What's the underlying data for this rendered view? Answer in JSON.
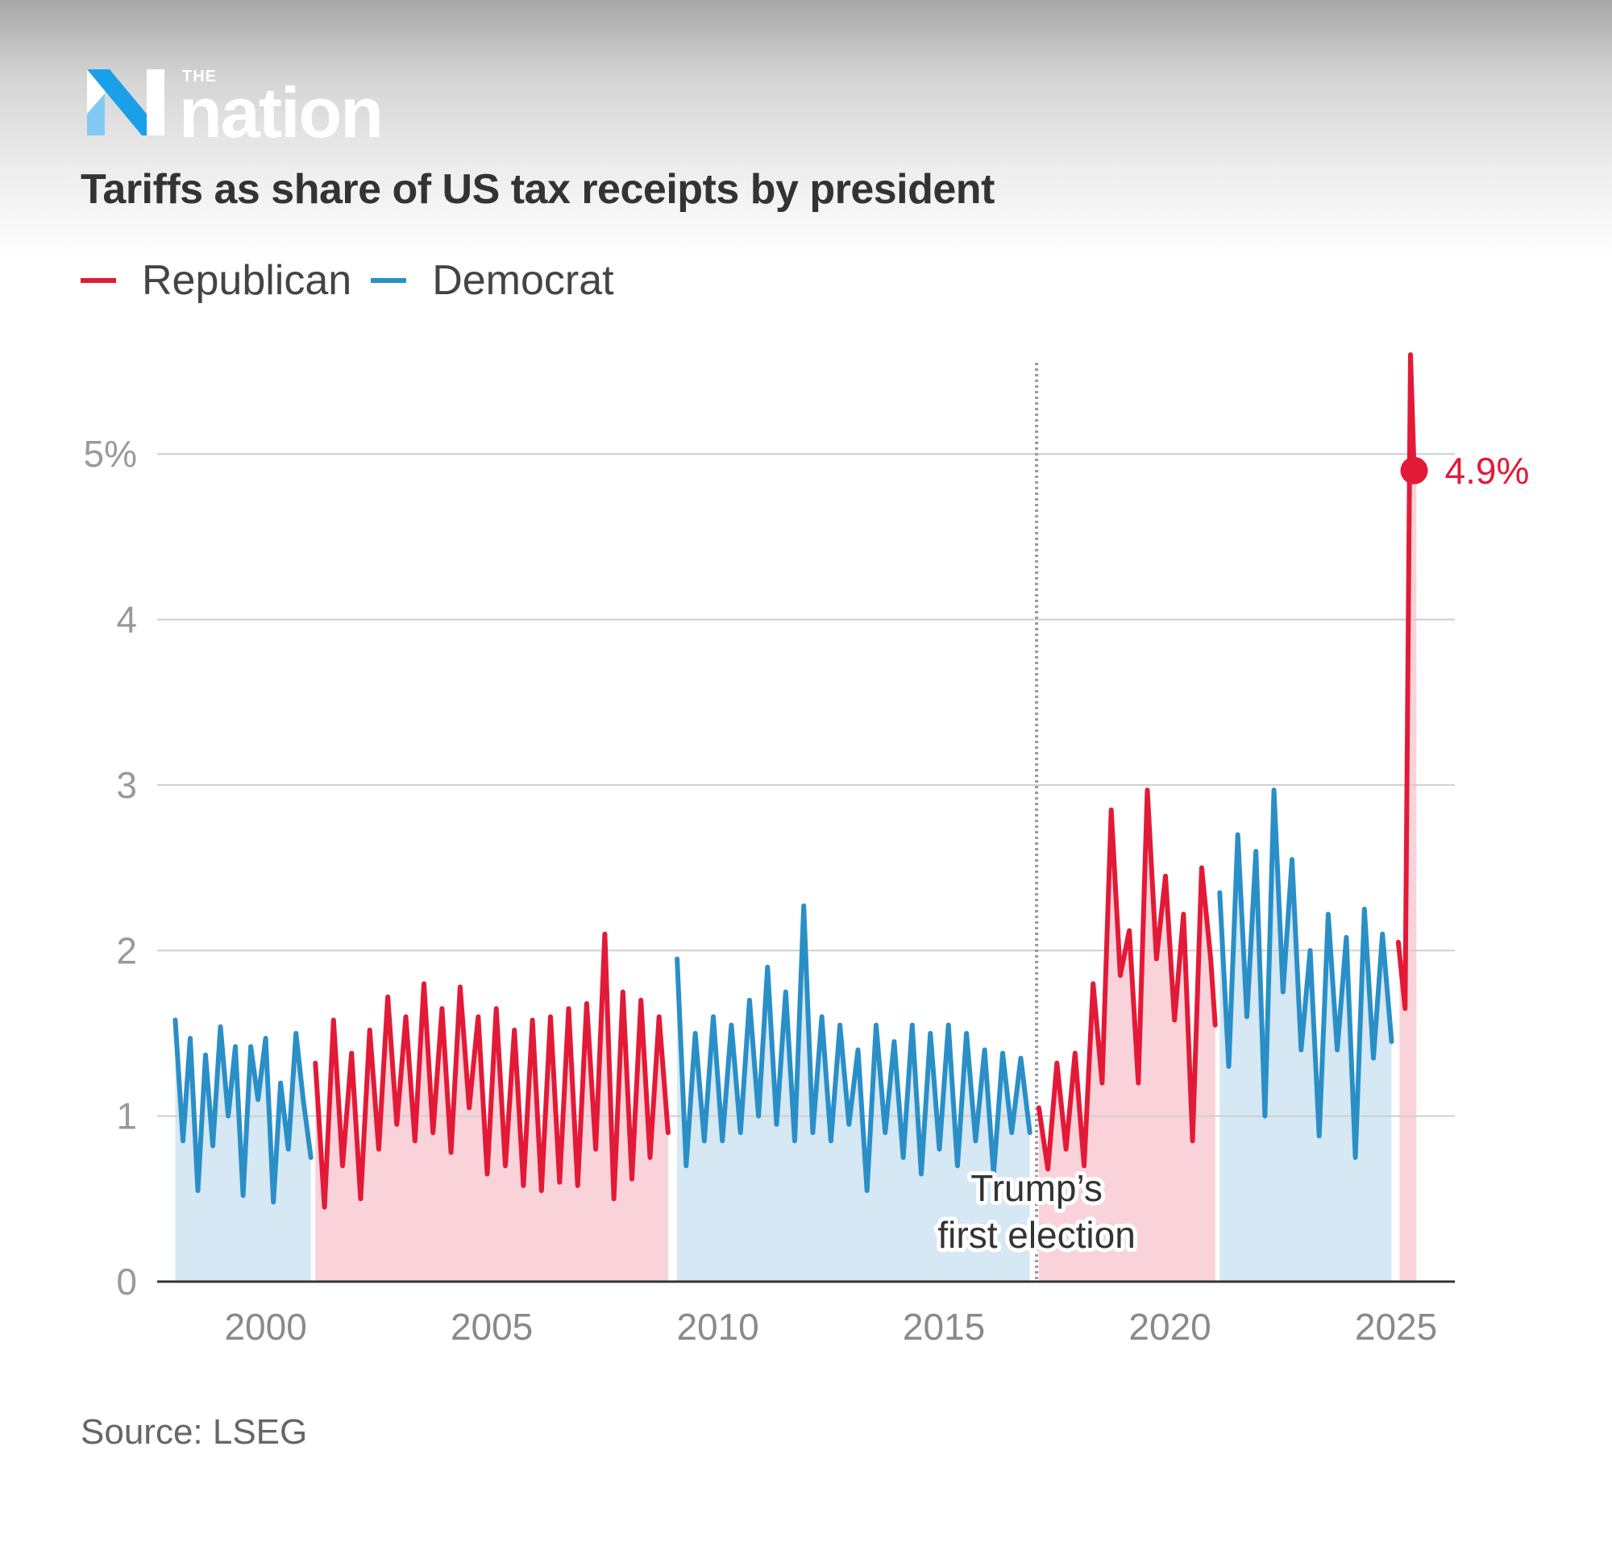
{
  "brand": {
    "the": "THE",
    "name": "nation"
  },
  "title": "Tariffs as share of US tax receipts by president",
  "legend": [
    {
      "label": "Republican",
      "color": "#e31a37"
    },
    {
      "label": "Democrat",
      "color": "#2a8fc7"
    }
  ],
  "source": "Source: LSEG",
  "chart_data": {
    "type": "line",
    "title": "Tariffs as share of US tax receipts by president",
    "xlabel": "",
    "ylabel": "",
    "xlim": [
      1997.6,
      2026.3
    ],
    "ylim": [
      0,
      5.6
    ],
    "x_ticks": [
      2000,
      2005,
      2010,
      2015,
      2020,
      2025
    ],
    "x_tick_labels": [
      "2000",
      "2005",
      "2010",
      "2015",
      "2020",
      "2025"
    ],
    "y_ticks": [
      0,
      1,
      2,
      3,
      4,
      5
    ],
    "y_tick_labels": [
      "0",
      "1",
      "2",
      "3",
      "4",
      "5%"
    ],
    "grid": true,
    "series": [
      {
        "name": "Democrat",
        "party": "Democrat",
        "color": "#2a8fc7",
        "fill": "#d5e8f4",
        "x": [
          1998.0,
          1998.17,
          1998.33,
          1998.5,
          1998.67,
          1998.83,
          1999.0,
          1999.17,
          1999.33,
          1999.5,
          1999.67,
          1999.83,
          2000.0,
          2000.17,
          2000.33,
          2000.5,
          2000.67,
          2000.83,
          2001.0
        ],
        "values": [
          1.58,
          0.85,
          1.47,
          0.55,
          1.37,
          0.82,
          1.54,
          1.0,
          1.42,
          0.52,
          1.42,
          1.1,
          1.47,
          0.48,
          1.2,
          0.8,
          1.5,
          1.1,
          0.75
        ]
      },
      {
        "name": "Republican",
        "party": "Republican",
        "color": "#e31a37",
        "fill": "#f9d3d9",
        "x": [
          2001.1,
          2001.3,
          2001.5,
          2001.7,
          2001.9,
          2002.1,
          2002.3,
          2002.5,
          2002.7,
          2002.9,
          2003.1,
          2003.3,
          2003.5,
          2003.7,
          2003.9,
          2004.1,
          2004.3,
          2004.5,
          2004.7,
          2004.9,
          2005.1,
          2005.3,
          2005.5,
          2005.7,
          2005.9,
          2006.1,
          2006.3,
          2006.5,
          2006.7,
          2006.9,
          2007.1,
          2007.3,
          2007.5,
          2007.7,
          2007.9,
          2008.1,
          2008.3,
          2008.5,
          2008.7,
          2008.9
        ],
        "values": [
          1.32,
          0.45,
          1.58,
          0.7,
          1.38,
          0.5,
          1.52,
          0.8,
          1.72,
          0.95,
          1.6,
          0.85,
          1.8,
          0.9,
          1.65,
          0.78,
          1.78,
          1.05,
          1.6,
          0.65,
          1.65,
          0.7,
          1.52,
          0.58,
          1.58,
          0.55,
          1.6,
          0.6,
          1.65,
          0.58,
          1.68,
          0.8,
          2.1,
          0.5,
          1.75,
          0.62,
          1.7,
          0.75,
          1.6,
          0.9
        ]
      },
      {
        "name": "Democrat",
        "party": "Democrat",
        "color": "#2a8fc7",
        "fill": "#d5e8f4",
        "x": [
          2009.1,
          2009.3,
          2009.5,
          2009.7,
          2009.9,
          2010.1,
          2010.3,
          2010.5,
          2010.7,
          2010.9,
          2011.1,
          2011.3,
          2011.5,
          2011.7,
          2011.9,
          2012.1,
          2012.3,
          2012.5,
          2012.7,
          2012.9,
          2013.1,
          2013.3,
          2013.5,
          2013.7,
          2013.9,
          2014.1,
          2014.3,
          2014.5,
          2014.7,
          2014.9,
          2015.1,
          2015.3,
          2015.5,
          2015.7,
          2015.9,
          2016.1,
          2016.3,
          2016.5,
          2016.7,
          2016.9
        ],
        "values": [
          1.95,
          0.7,
          1.5,
          0.85,
          1.6,
          0.85,
          1.55,
          0.9,
          1.7,
          1.0,
          1.9,
          0.95,
          1.75,
          0.85,
          2.27,
          0.9,
          1.6,
          0.85,
          1.55,
          0.95,
          1.4,
          0.55,
          1.55,
          0.9,
          1.45,
          0.75,
          1.55,
          0.65,
          1.5,
          0.8,
          1.55,
          0.7,
          1.5,
          0.85,
          1.4,
          0.65,
          1.38,
          0.9,
          1.35,
          0.9
        ]
      },
      {
        "name": "Republican",
        "party": "Republican",
        "color": "#e31a37",
        "fill": "#f9d3d9",
        "x": [
          2017.1,
          2017.3,
          2017.5,
          2017.7,
          2017.9,
          2018.1,
          2018.3,
          2018.5,
          2018.7,
          2018.9,
          2019.1,
          2019.3,
          2019.5,
          2019.7,
          2019.9,
          2020.1,
          2020.3,
          2020.5,
          2020.7,
          2020.9,
          2021.0
        ],
        "values": [
          1.05,
          0.68,
          1.32,
          0.8,
          1.38,
          0.7,
          1.8,
          1.2,
          2.85,
          1.85,
          2.12,
          1.2,
          2.97,
          1.95,
          2.45,
          1.58,
          2.22,
          0.85,
          2.5,
          1.95,
          1.55
        ]
      },
      {
        "name": "Democrat",
        "party": "Democrat",
        "color": "#2a8fc7",
        "fill": "#d5e8f4",
        "x": [
          2021.1,
          2021.3,
          2021.5,
          2021.7,
          2021.9,
          2022.1,
          2022.3,
          2022.5,
          2022.7,
          2022.9,
          2023.1,
          2023.3,
          2023.5,
          2023.7,
          2023.9,
          2024.1,
          2024.3,
          2024.5,
          2024.7,
          2024.9
        ],
        "values": [
          2.35,
          1.3,
          2.7,
          1.6,
          2.6,
          1.0,
          2.97,
          1.75,
          2.55,
          1.4,
          2.0,
          0.88,
          2.22,
          1.4,
          2.08,
          0.75,
          2.25,
          1.35,
          2.1,
          1.45
        ]
      },
      {
        "name": "Republican",
        "party": "Republican",
        "color": "#e31a37",
        "fill": "#f9d3d9",
        "x": [
          2025.05,
          2025.2,
          2025.32,
          2025.4,
          2025.45
        ],
        "values": [
          2.05,
          1.65,
          5.6,
          4.9,
          4.9
        ]
      }
    ],
    "regions": [
      {
        "party": "Democrat",
        "x": [
          1998.0,
          2001.0
        ]
      },
      {
        "party": "Republican",
        "x": [
          2001.05,
          2009.0
        ]
      },
      {
        "party": "Democrat",
        "x": [
          2009.05,
          2017.05
        ]
      },
      {
        "party": "Republican",
        "x": [
          2017.05,
          2021.05
        ]
      },
      {
        "party": "Democrat",
        "x": [
          2021.05,
          2025.0
        ]
      },
      {
        "party": "Republican",
        "x": [
          2025.05,
          2025.45
        ]
      }
    ],
    "annotations": [
      {
        "type": "vline",
        "x": 2017.05,
        "label_lines": [
          "Trump’s",
          "first election"
        ]
      },
      {
        "type": "point",
        "x": 2025.4,
        "y": 4.9,
        "label": "4.9%",
        "color": "#e31a37"
      }
    ]
  }
}
